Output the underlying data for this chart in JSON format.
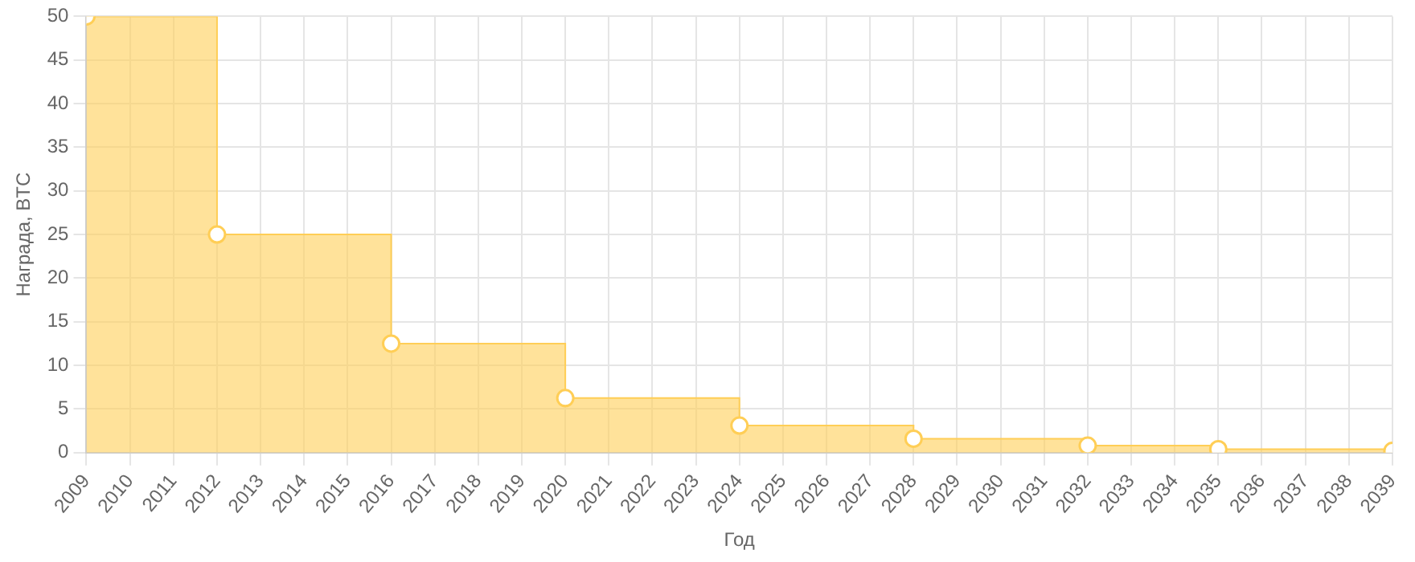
{
  "chart_data": {
    "type": "area",
    "xlabel": "Год",
    "ylabel": "Награда, BTC",
    "series": [
      {
        "marker": "none",
        "color": "#ffce56",
        "x": [
          2009,
          2012,
          2012,
          2016,
          2016,
          2020,
          2020,
          2024,
          2024,
          2028,
          2028,
          2032,
          2032,
          2035,
          2035,
          2039,
          2039
        ],
        "values": [
          50,
          50,
          25,
          25,
          12.5,
          12.5,
          6.25,
          6.25,
          3.1,
          3.1,
          1.6,
          1.6,
          0.8,
          0.8,
          0.4,
          0.4,
          0.2
        ]
      },
      {
        "type": "scatter",
        "marker": "circle",
        "color": "#ffce56",
        "x": [
          2009,
          2012,
          2016,
          2020,
          2024,
          2028,
          2032,
          2035,
          2039
        ],
        "values": [
          50,
          25,
          12.5,
          6.25,
          3.1,
          1.6,
          0.8,
          0.4,
          0.2
        ]
      }
    ],
    "xlim": [
      2009,
      2039
    ],
    "xticks": [
      2009,
      2010,
      2011,
      2012,
      2013,
      2014,
      2015,
      2016,
      2017,
      2018,
      2019,
      2020,
      2021,
      2022,
      2023,
      2024,
      2025,
      2026,
      2027,
      2028,
      2029,
      2030,
      2031,
      2032,
      2033,
      2034,
      2035,
      2036,
      2037,
      2038,
      2039
    ],
    "ylim": [
      0,
      50
    ],
    "yticks": [
      0,
      5,
      10,
      15,
      20,
      25,
      30,
      35,
      40,
      45,
      50
    ],
    "grid": true,
    "legend": false
  }
}
